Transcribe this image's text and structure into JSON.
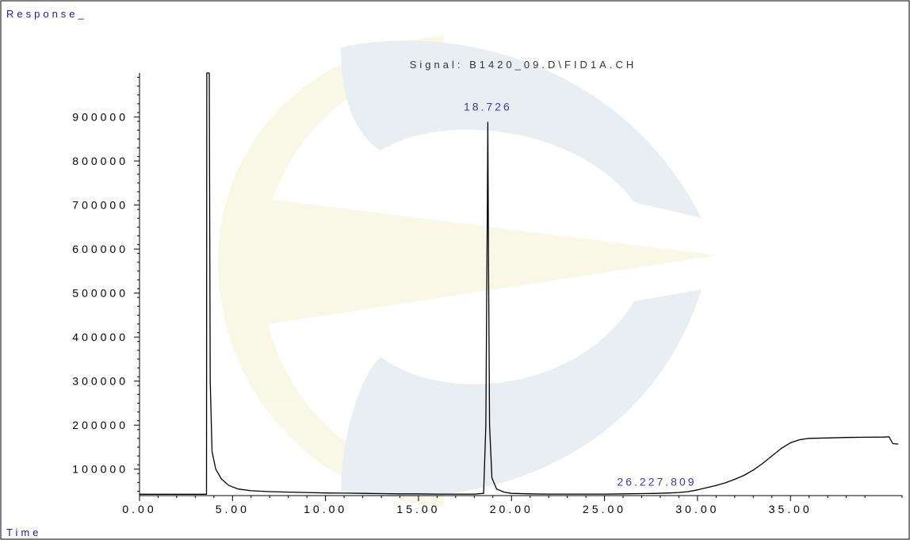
{
  "chart_data": {
    "type": "line",
    "title": "Signal: B1420_09.D\\FID1A.CH",
    "ylabel": "Response_",
    "xlabel": "Time",
    "xlim": [
      0,
      41
    ],
    "ylim": [
      40000,
      1000000
    ],
    "x_ticks": [
      {
        "value": 0,
        "label": "0.00"
      },
      {
        "value": 5,
        "label": "5.00"
      },
      {
        "value": 10,
        "label": "10.00"
      },
      {
        "value": 15,
        "label": "15.00"
      },
      {
        "value": 20,
        "label": "20.00"
      },
      {
        "value": 25,
        "label": "25.00"
      },
      {
        "value": 30,
        "label": "30.00"
      },
      {
        "value": 35,
        "label": "35.00"
      }
    ],
    "y_ticks": [
      {
        "value": 100000,
        "label": "100000"
      },
      {
        "value": 200000,
        "label": "200000"
      },
      {
        "value": 300000,
        "label": "300000"
      },
      {
        "value": 400000,
        "label": "400000"
      },
      {
        "value": 500000,
        "label": "500000"
      },
      {
        "value": 600000,
        "label": "600000"
      },
      {
        "value": 700000,
        "label": "700000"
      },
      {
        "value": 800000,
        "label": "800000"
      },
      {
        "value": 900000,
        "label": "900000"
      }
    ],
    "peak_labels": [
      {
        "x": 18.726,
        "y": 900000,
        "label": "18.726"
      },
      {
        "x": 27.809,
        "y": 48000,
        "label": "26.227.809"
      }
    ],
    "grid": false,
    "series": [
      {
        "color": "#000000",
        "points": [
          [
            0,
            43000
          ],
          [
            3.6,
            43000
          ],
          [
            3.62,
            1000000
          ],
          [
            3.75,
            1000000
          ],
          [
            3.8,
            300000
          ],
          [
            3.9,
            140000
          ],
          [
            4.1,
            100000
          ],
          [
            4.4,
            78000
          ],
          [
            4.8,
            63000
          ],
          [
            5.3,
            55000
          ],
          [
            6,
            51000
          ],
          [
            7,
            49000
          ],
          [
            8,
            48000
          ],
          [
            9,
            47000
          ],
          [
            10,
            46000
          ],
          [
            11,
            45500
          ],
          [
            12,
            45000
          ],
          [
            13,
            44500
          ],
          [
            14,
            44000
          ],
          [
            15,
            44000
          ],
          [
            16,
            43500
          ],
          [
            17,
            43500
          ],
          [
            18,
            43500
          ],
          [
            18.5,
            45000
          ],
          [
            18.62,
            200000
          ],
          [
            18.7,
            700000
          ],
          [
            18.726,
            888000
          ],
          [
            18.76,
            600000
          ],
          [
            18.82,
            200000
          ],
          [
            18.95,
            80000
          ],
          [
            19.2,
            55000
          ],
          [
            19.6,
            48000
          ],
          [
            20,
            45000
          ],
          [
            21,
            44000
          ],
          [
            22,
            43500
          ],
          [
            23,
            43500
          ],
          [
            24,
            43500
          ],
          [
            25,
            43500
          ],
          [
            26,
            44000
          ],
          [
            27,
            44500
          ],
          [
            27.8,
            45000
          ],
          [
            28.5,
            46000
          ],
          [
            29,
            47000
          ],
          [
            29.5,
            49000
          ],
          [
            30,
            53000
          ],
          [
            30.5,
            58000
          ],
          [
            31,
            63000
          ],
          [
            31.5,
            69000
          ],
          [
            32,
            77000
          ],
          [
            32.5,
            86000
          ],
          [
            33,
            98000
          ],
          [
            33.5,
            113000
          ],
          [
            34,
            130000
          ],
          [
            34.5,
            147000
          ],
          [
            35,
            160000
          ],
          [
            35.5,
            167000
          ],
          [
            36,
            170000
          ],
          [
            37,
            171000
          ],
          [
            38,
            172000
          ],
          [
            39,
            172500
          ],
          [
            40,
            173000
          ],
          [
            40.3,
            173500
          ],
          [
            40.5,
            158000
          ],
          [
            40.8,
            157000
          ]
        ]
      }
    ]
  }
}
